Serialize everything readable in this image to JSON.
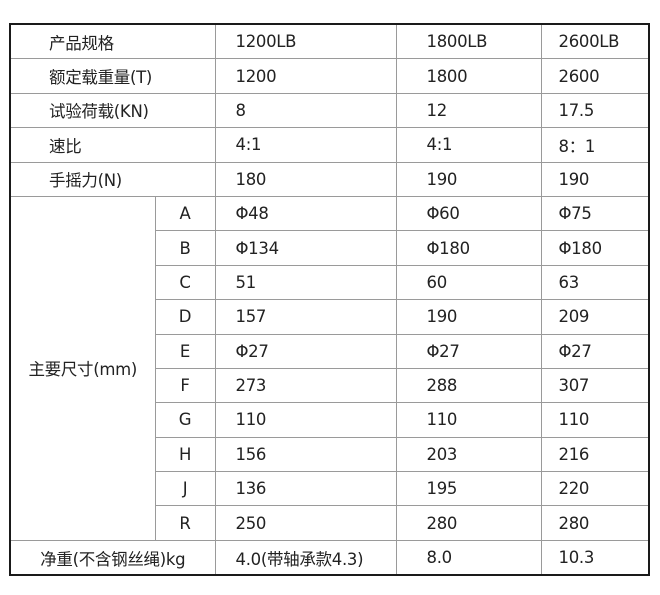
{
  "header": {
    "label": "产品规格",
    "models": [
      "1200LB",
      "1800LB",
      "2600LB"
    ]
  },
  "rows": [
    {
      "label": "额定载重量(T)",
      "values": [
        "1200",
        "1800",
        "2600"
      ]
    },
    {
      "label": "试验荷载(KN)",
      "values": [
        "8",
        "12",
        "17.5"
      ]
    },
    {
      "label": "速比",
      "values": [
        "4:1",
        "4:1",
        "8：1"
      ]
    },
    {
      "label": "手摇力(N)",
      "values": [
        "180",
        "190",
        "190"
      ]
    }
  ],
  "dimensions": {
    "label": "主要尺寸(mm)",
    "rows": [
      {
        "key": "A",
        "values": [
          "Φ48",
          "Φ60",
          "Φ75"
        ]
      },
      {
        "key": "B",
        "values": [
          "Φ134",
          "Φ180",
          "Φ180"
        ]
      },
      {
        "key": "C",
        "values": [
          "51",
          "60",
          "63"
        ]
      },
      {
        "key": "D",
        "values": [
          "157",
          "190",
          "209"
        ]
      },
      {
        "key": "E",
        "values": [
          "Φ27",
          "Φ27",
          "Φ27"
        ]
      },
      {
        "key": "F",
        "values": [
          "273",
          "288",
          "307"
        ]
      },
      {
        "key": "G",
        "values": [
          "110",
          "110",
          "110"
        ]
      },
      {
        "key": "H",
        "values": [
          "156",
          "203",
          "216"
        ]
      },
      {
        "key": "J",
        "values": [
          "136",
          "195",
          "220"
        ]
      },
      {
        "key": "R",
        "values": [
          "250",
          "280",
          "280"
        ]
      }
    ]
  },
  "net_weight": {
    "label": "净重(不含钢丝绳)kg",
    "values": [
      "4.0(带轴承款4.3)",
      "8.0",
      "10.3"
    ]
  }
}
